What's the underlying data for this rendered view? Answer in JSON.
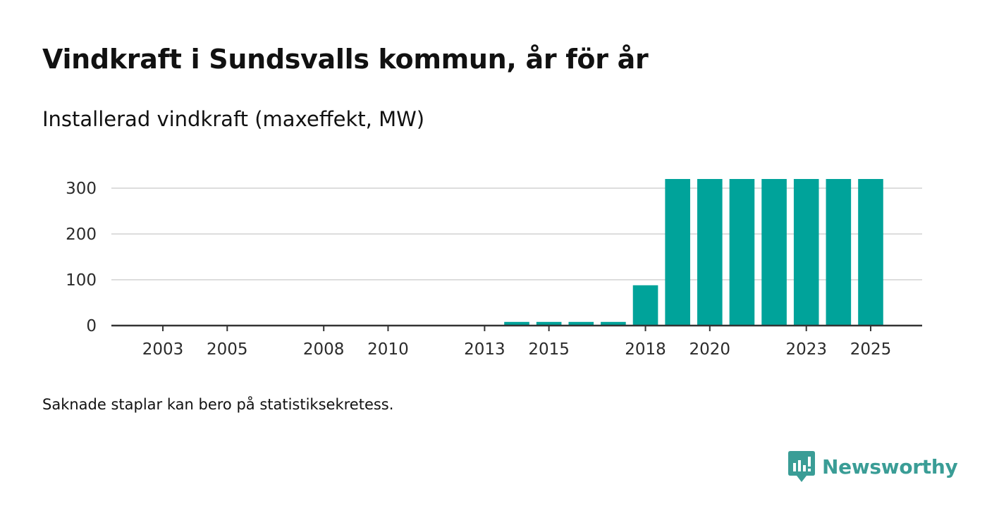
{
  "header": {
    "title": "Vindkraft i Sundsvalls kommun, år för år",
    "subtitle": "Installerad vindkraft (maxeffekt, MW)"
  },
  "footnote": "Saknade staplar kan bero på statistiksekretess.",
  "brand": {
    "name": "Newsworthy",
    "logo_icon": "newsworthy-bar-chart-speech-bubble-icon",
    "color": "#3a9d96"
  },
  "colors": {
    "bar": "#00a39a",
    "grid": "#dddddd",
    "axis": "#333333"
  },
  "chart_data": {
    "type": "bar",
    "title": "Vindkraft i Sundsvalls kommun, år för år",
    "subtitle": "Installerad vindkraft (maxeffekt, MW)",
    "xlabel": "",
    "ylabel": "",
    "ylim": [
      0,
      300
    ],
    "yticks": [
      0,
      100,
      200,
      300
    ],
    "grid": true,
    "xlim": [
      2001.4,
      2026.6
    ],
    "xticks": [
      "2003",
      "2005",
      "2008",
      "2010",
      "2013",
      "2015",
      "2018",
      "2020",
      "2023",
      "2025"
    ],
    "categories": [
      2014,
      2015,
      2016,
      2017,
      2018,
      2019,
      2020,
      2021,
      2022,
      2023,
      2024,
      2025
    ],
    "values": [
      8,
      8,
      8,
      8,
      88,
      320,
      320,
      320,
      320,
      320,
      320,
      320
    ]
  }
}
